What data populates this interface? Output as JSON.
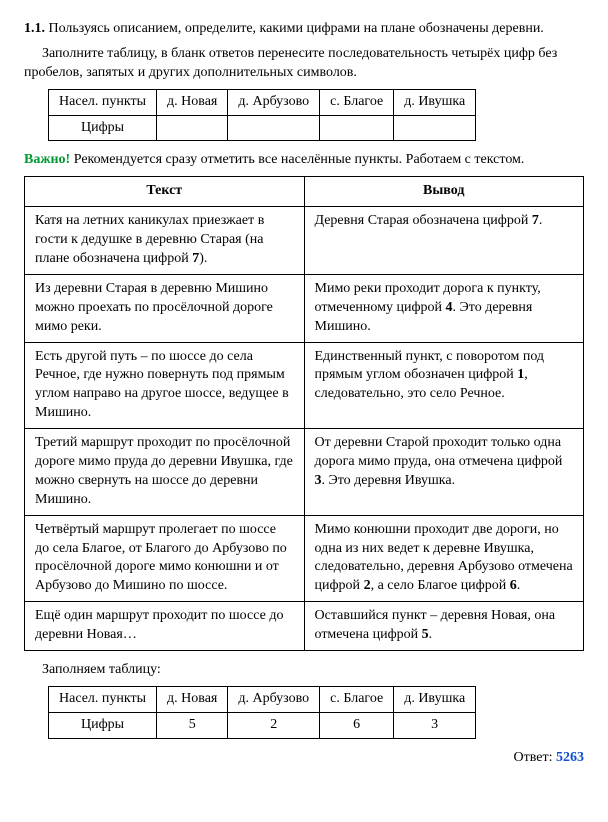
{
  "task": {
    "number": "1.1.",
    "line1": "Пользуясь описанием, определите, какими цифрами на плане обозначены деревни.",
    "line2": "Заполните таблицу, в бланк ответов перенесите последовательность четырёх цифр без пробелов, запятых и других дополнительных символов."
  },
  "blank_table": {
    "r1": [
      "Насел. пункты",
      "д. Новая",
      "д. Арбузово",
      "с. Благое",
      "д. Ивушка"
    ],
    "r2_label": "Цифры"
  },
  "important": {
    "label": "Важно!",
    "text": " Рекомендуется сразу отметить все населённые пункты. Работаем с текстом."
  },
  "maintable": {
    "h1": "Текст",
    "h2": "Вывод",
    "rows": [
      {
        "t_a": "Катя на летних каникулах приезжает в гости к дедушке в деревню Старая (на плане обозначена цифрой ",
        "t_b1": "7",
        "t_c": ").",
        "v_a": "Деревня Старая обозначена цифрой ",
        "v_b1": "7",
        "v_c": "."
      },
      {
        "t_a": "Из деревни Старая в деревню Мишино можно проехать по просёлочной дороге мимо реки.",
        "v_a": "Мимо реки проходит дорога к пункту, отмеченному цифрой ",
        "v_b1": "4",
        "v_c": ". Это деревня Мишино."
      },
      {
        "t_a": "Есть другой путь – по шоссе до села Речное, где нужно повернуть под прямым углом направо на другое шоссе, ведущее в Мишино.",
        "v_a": "Единственный пункт, с поворотом под прямым углом обозначен цифрой ",
        "v_b1": "1",
        "v_c": ", следовательно, это село Речное."
      },
      {
        "t_a": "Третий маршрут проходит по просёлочной дороге мимо пруда до деревни Ивушка, где можно свернуть на шоссе до деревни Мишино.",
        "v_a": "От деревни Старой проходит только одна дорога мимо пруда, она отмечена цифрой ",
        "v_b1": "3",
        "v_c": ". Это деревня Ивушка."
      },
      {
        "t_a": "Четвёртый маршрут пролегает по шоссе до села Благое, от Благого до Арбузово по просёлочной дороге мимо конюшни и от Арбузово до Мишино по шоссе.",
        "v_a": "Мимо конюшни проходит две дороги, но одна из них ведет к деревне Ивушка, следовательно, деревня Арбузово отмечена цифрой ",
        "v_b1": "2",
        "v_c": ", а село Благое цифрой ",
        "v_b2": "6",
        "v_d": "."
      },
      {
        "t_a": "Ещё один маршрут проходит по шоссе до деревни Новая…",
        "v_a": "Оставшийся пункт – деревня Новая, она отмечена цифрой ",
        "v_b1": "5",
        "v_c": "."
      }
    ]
  },
  "fill_label": "Заполняем таблицу:",
  "filled_table": {
    "r1": [
      "Насел. пункты",
      "д. Новая",
      "д. Арбузово",
      "с. Благое",
      "д. Ивушка"
    ],
    "r2": [
      "Цифры",
      "5",
      "2",
      "6",
      "3"
    ]
  },
  "answer": {
    "label": "Ответ: ",
    "value": "5263"
  }
}
